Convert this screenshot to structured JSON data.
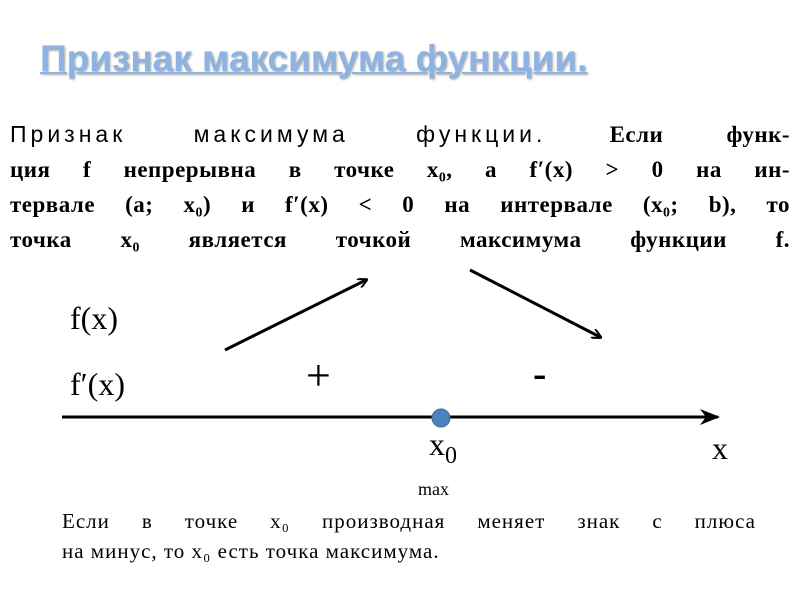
{
  "slide": {
    "title": "Признак максимума функции.",
    "theorem": {
      "lead": "Признак максимума функции.",
      "line1_rest": "Если функ-",
      "line2": "ция f непрерывна в точке x₀, а f′(x) > 0 на ин-",
      "line3": "тервале (a; x₀) и f′(x) < 0 на интервале (x₀; b), то",
      "line4": "точка x₀ является точкой максимума функции f."
    },
    "diagram": {
      "function_label": "f(x)",
      "derivative_label": "f′(x)",
      "plus_sign": "+",
      "minus_sign": "-",
      "point_label": "x",
      "point_subscript": "0",
      "axis_label": "x",
      "max_label": "max",
      "point_color": "#4f81bd"
    },
    "conclusion": {
      "line1": "Если в точке x₀ производная меняет знак с плюса",
      "line2": "на минус, то x₀ есть точка максимума."
    },
    "title_color": "#8db3e2"
  }
}
